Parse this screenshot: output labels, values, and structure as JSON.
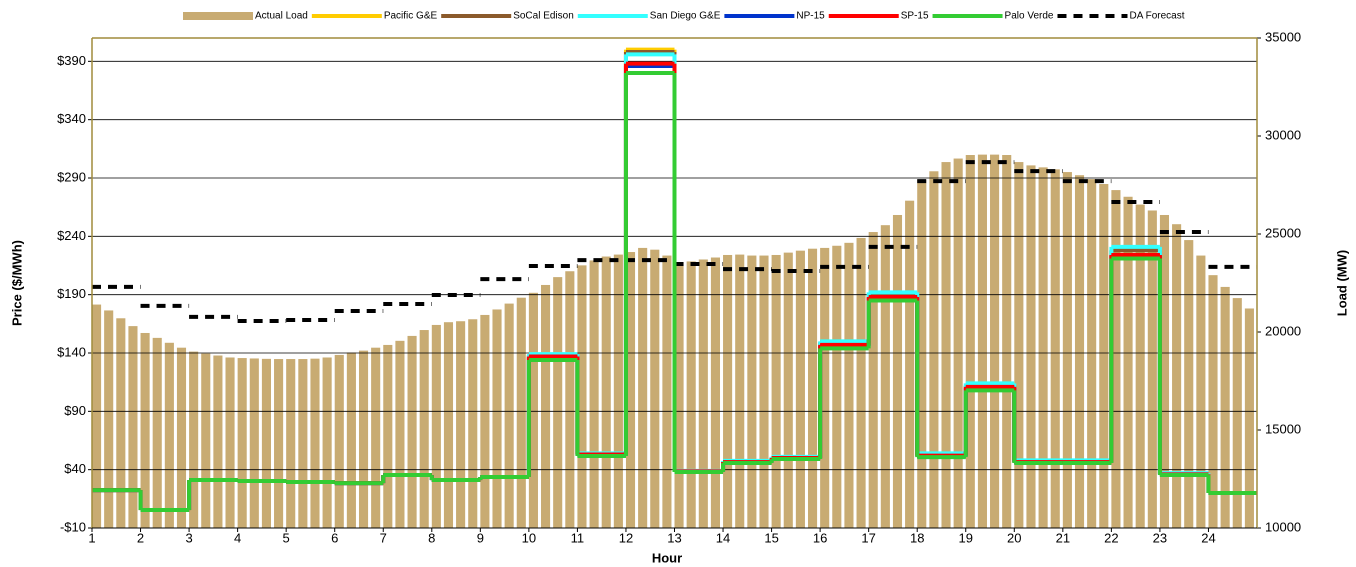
{
  "chart_data": {
    "type": "combo",
    "xlabel": "Hour",
    "ylabel": "Price ($/MWh)",
    "y2label": "Load (MW)",
    "xlim": [
      1,
      25
    ],
    "xticks": [
      1,
      2,
      3,
      4,
      5,
      6,
      7,
      8,
      9,
      10,
      11,
      12,
      13,
      14,
      15,
      16,
      17,
      18,
      19,
      20,
      21,
      22,
      23,
      24
    ],
    "ylim": [
      -10,
      410
    ],
    "yticks": [
      {
        "value": -10,
        "label": "-$10"
      },
      {
        "value": 40,
        "label": "$40"
      },
      {
        "value": 90,
        "label": "$90"
      },
      {
        "value": 140,
        "label": "$140"
      },
      {
        "value": 190,
        "label": "$190"
      },
      {
        "value": 240,
        "label": "$240"
      },
      {
        "value": 290,
        "label": "$290"
      },
      {
        "value": 340,
        "label": "$340"
      },
      {
        "value": 390,
        "label": "$390"
      }
    ],
    "y2lim": [
      10000,
      35000
    ],
    "y2ticks": [
      10000,
      15000,
      20000,
      25000,
      30000,
      35000
    ],
    "grid": true,
    "legend": "top",
    "x": [
      1,
      2,
      3,
      4,
      5,
      6,
      7,
      8,
      9,
      10,
      11,
      12,
      13,
      14,
      15,
      16,
      17,
      18,
      19,
      20,
      21,
      22,
      23,
      24
    ],
    "series": [
      {
        "name": "Actual Load",
        "type": "bar",
        "axis": "y2",
        "color": "#c8ab72",
        "x": [
          1,
          1.25,
          1.5,
          1.75,
          2,
          2.25,
          2.5,
          2.75,
          3,
          3.25,
          3.5,
          3.75,
          4,
          4.25,
          4.5,
          4.75,
          5,
          5.25,
          5.5,
          5.75,
          6,
          6.25,
          6.5,
          6.75,
          7,
          7.25,
          7.5,
          7.75,
          8,
          8.25,
          8.5,
          8.75,
          9,
          9.25,
          9.5,
          9.75,
          10,
          10.25,
          10.5,
          10.75,
          11,
          11.25,
          11.5,
          11.75,
          12,
          12.25,
          12.5,
          12.75,
          13,
          13.25,
          13.5,
          13.75,
          14,
          14.25,
          14.5,
          14.75,
          15,
          15.25,
          15.5,
          15.75,
          16,
          16.25,
          16.5,
          16.75,
          17,
          17.25,
          17.5,
          17.75,
          18,
          18.25,
          18.5,
          18.75,
          19,
          19.25,
          19.5,
          19.75,
          20,
          20.25,
          20.5,
          20.75,
          21,
          21.25,
          21.5,
          21.75,
          22,
          22.25,
          22.5,
          22.75,
          23,
          23.25,
          23.5,
          23.75,
          24,
          24.25,
          24.5,
          24.75
        ],
        "values": [
          21400,
          21100,
          20700,
          20300,
          19950,
          19700,
          19450,
          19200,
          19000,
          18900,
          18800,
          18700,
          18670,
          18650,
          18630,
          18620,
          18620,
          18620,
          18640,
          18700,
          18830,
          18950,
          19050,
          19200,
          19340,
          19550,
          19800,
          20100,
          20360,
          20500,
          20550,
          20650,
          20870,
          21150,
          21450,
          21750,
          22000,
          22400,
          22800,
          23100,
          23400,
          23650,
          23850,
          23950,
          24080,
          24290,
          24200,
          23900,
          23570,
          23600,
          23700,
          23800,
          23930,
          23950,
          23900,
          23900,
          23930,
          24050,
          24150,
          24250,
          24290,
          24400,
          24550,
          24800,
          25100,
          25450,
          25970,
          26700,
          27760,
          28200,
          28670,
          28850,
          29030,
          29050,
          29050,
          29030,
          28670,
          28500,
          28400,
          28300,
          28160,
          28000,
          27800,
          27550,
          27240,
          26900,
          26500,
          26200,
          25970,
          25500,
          24690,
          23900,
          22900,
          22300,
          21730,
          21200
        ]
      },
      {
        "name": "Pacific G&E",
        "type": "step",
        "axis": "y",
        "color": "#ffcc00",
        "values": [
          22.5,
          5.4,
          31.1,
          30.3,
          29.4,
          28.5,
          35.4,
          31.1,
          33.7,
          138,
          53.5,
          400,
          38.7,
          47,
          50.5,
          149,
          190,
          53,
          112,
          47,
          47,
          228,
          36.5,
          20
        ]
      },
      {
        "name": "SoCal Edison",
        "type": "step",
        "axis": "y",
        "color": "#8b5a2b",
        "values": [
          22.5,
          5.4,
          31.1,
          30.3,
          29.4,
          28.5,
          35.4,
          31.1,
          33.7,
          138,
          53.5,
          398,
          38.7,
          47,
          50.5,
          149,
          190,
          53,
          112,
          47,
          47,
          228,
          36.5,
          20
        ]
      },
      {
        "name": "San Diego G&E",
        "type": "step",
        "axis": "y",
        "color": "#33ffff",
        "values": [
          22.5,
          5.4,
          31.1,
          30.3,
          29.4,
          28.5,
          35.4,
          31.1,
          33.7,
          139,
          54,
          396,
          39,
          47.5,
          51,
          150,
          192,
          54,
          114,
          48,
          48,
          231,
          37,
          20
        ]
      },
      {
        "name": "NP-15",
        "type": "step",
        "axis": "y",
        "color": "#0033cc",
        "values": [
          22.5,
          5.4,
          31.1,
          30.3,
          29.4,
          28.5,
          35.4,
          31.1,
          33.7,
          136,
          52.5,
          386,
          38.3,
          46.2,
          49.6,
          146,
          187,
          51.5,
          110,
          46.2,
          46.2,
          223,
          35.8,
          20
        ]
      },
      {
        "name": "SP-15",
        "type": "step",
        "axis": "y",
        "color": "#ff0000",
        "values": [
          22.5,
          5.4,
          31.1,
          30.3,
          29.4,
          28.5,
          35.4,
          31.1,
          33.7,
          137,
          53,
          388,
          38.5,
          46.5,
          50,
          147,
          188,
          52,
          111,
          46.5,
          46.5,
          224,
          36,
          20
        ]
      },
      {
        "name": "Palo Verde",
        "type": "step",
        "axis": "y",
        "color": "#33cc33",
        "values": [
          22.5,
          5.4,
          31.1,
          30.3,
          29.4,
          28.5,
          35.4,
          31.1,
          33.7,
          134,
          51.7,
          380,
          38,
          45.7,
          49.1,
          144,
          185,
          50.8,
          108,
          45.7,
          45.7,
          221,
          35.4,
          20
        ]
      },
      {
        "name": "DA Forecast",
        "type": "step",
        "axis": "y2",
        "color": "#000000",
        "dashed": true,
        "values": [
          22300,
          21330,
          20770,
          20560,
          20610,
          21070,
          21430,
          21890,
          22700,
          23370,
          23670,
          23670,
          23470,
          23210,
          23110,
          23320,
          24340,
          27700,
          28670,
          28210,
          27700,
          26630,
          25100,
          23320
        ]
      }
    ]
  }
}
